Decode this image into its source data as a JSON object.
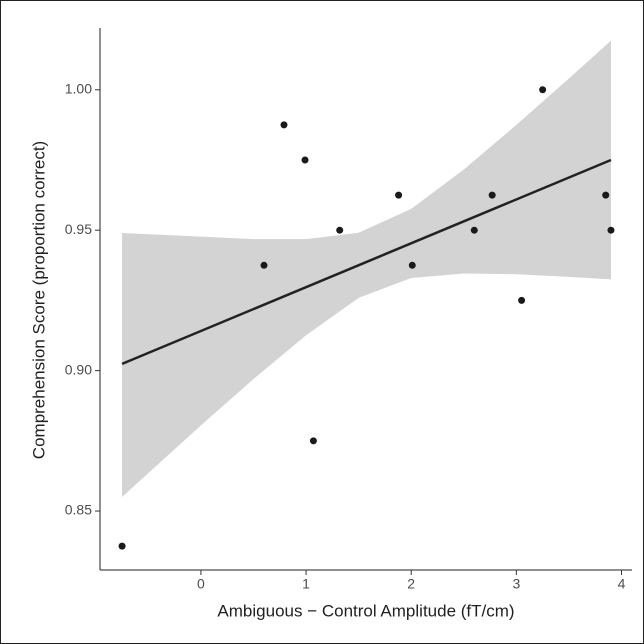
{
  "chart_data": {
    "type": "scatter",
    "x_label": "Ambiguous − Control Amplitude (fT/cm)",
    "y_label": "Comprehension Score (proportion correct)",
    "xlim": [
      -0.96,
      4.1
    ],
    "ylim": [
      0.829,
      1.022
    ],
    "xticks": [
      0,
      1,
      2,
      3,
      4
    ],
    "yticks": [
      0.85,
      {
        "value": 0.9,
        "label": "0.90"
      },
      0.95,
      {
        "value": 1,
        "label": "1.00"
      }
    ],
    "series": [
      {
        "color": "#1a1a1a",
        "x": [
          -0.75,
          0.6,
          0.79,
          0.99,
          1.07,
          1.32,
          1.88,
          2.01,
          2.6,
          2.77,
          3.05,
          3.25,
          3.85,
          3.9
        ],
        "values": [
          0.8375,
          0.9375,
          0.9875,
          0.975,
          0.875,
          0.95,
          0.9625,
          0.9375,
          0.95,
          0.9625,
          0.925,
          1.0,
          0.9625,
          0.95
        ]
      }
    ],
    "fit": {
      "color": "#222222",
      "x": [
        -0.75,
        3.9
      ],
      "values": [
        0.9024,
        0.975
      ]
    },
    "band": {
      "color": "#d3d3d3",
      "x": [
        -0.75,
        0,
        0.5,
        1,
        1.5,
        2,
        2.5,
        3,
        3.5,
        3.9
      ],
      "lower": [
        0.855,
        0.8805,
        0.897,
        0.9126,
        0.9259,
        0.933,
        0.9346,
        0.9343,
        0.9334,
        0.9325
      ],
      "upper": [
        0.949,
        0.9477,
        0.9468,
        0.9468,
        0.9491,
        0.9576,
        0.9716,
        0.9875,
        1.004,
        1.0175
      ]
    }
  }
}
